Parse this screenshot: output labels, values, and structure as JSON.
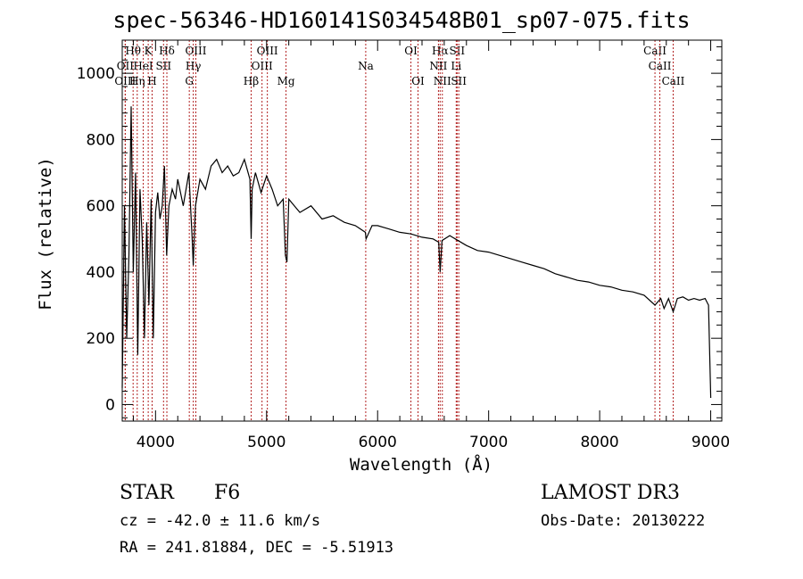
{
  "header": {
    "title": "spec-56346-HD160141S034548B01_sp07-075.fits"
  },
  "info": {
    "object_class": "STAR",
    "subclass": "F6",
    "survey": "LAMOST DR3",
    "cz": "cz = -42.0 ± 11.6 km/s",
    "obs_date": "Obs-Date: 20130222",
    "coords": "RA = 241.81884, DEC =  -5.51913"
  },
  "chart_data": {
    "type": "line",
    "title": "spec-56346-HD160141S034548B01_sp07-075.fits",
    "xlabel": "Wavelength (Å)",
    "ylabel": "Flux (relative)",
    "xlim": [
      3700,
      9100
    ],
    "ylim": [
      -50,
      1100
    ],
    "x_ticks": [
      4000,
      5000,
      6000,
      7000,
      8000,
      9000
    ],
    "y_ticks": [
      0,
      200,
      400,
      600,
      800,
      1000
    ],
    "grid": false,
    "series": [
      {
        "name": "spectrum",
        "x": [
          3700,
          3720,
          3740,
          3760,
          3780,
          3800,
          3820,
          3840,
          3860,
          3880,
          3900,
          3920,
          3940,
          3960,
          3980,
          4000,
          4020,
          4040,
          4060,
          4080,
          4100,
          4120,
          4150,
          4180,
          4200,
          4250,
          4300,
          4330,
          4340,
          4360,
          4400,
          4450,
          4500,
          4550,
          4600,
          4650,
          4700,
          4750,
          4800,
          4850,
          4861,
          4870,
          4900,
          4950,
          5000,
          5050,
          5100,
          5150,
          5170,
          5183,
          5200,
          5250,
          5300,
          5400,
          5500,
          5600,
          5700,
          5800,
          5890,
          5896,
          5950,
          6000,
          6100,
          6200,
          6300,
          6400,
          6500,
          6550,
          6563,
          6580,
          6650,
          6700,
          6800,
          6900,
          7000,
          7100,
          7200,
          7300,
          7400,
          7500,
          7600,
          7700,
          7800,
          7900,
          8000,
          8100,
          8200,
          8300,
          8400,
          8498,
          8550,
          8580,
          8620,
          8662,
          8700,
          8750,
          8800,
          8850,
          8900,
          8950,
          8980,
          9000
        ],
        "values": [
          50,
          600,
          200,
          450,
          900,
          400,
          700,
          150,
          650,
          500,
          200,
          550,
          300,
          620,
          200,
          580,
          640,
          560,
          600,
          720,
          450,
          600,
          650,
          620,
          680,
          600,
          700,
          500,
          420,
          600,
          680,
          650,
          720,
          740,
          700,
          720,
          690,
          700,
          740,
          680,
          500,
          650,
          700,
          640,
          690,
          650,
          600,
          620,
          450,
          430,
          620,
          600,
          580,
          600,
          560,
          570,
          550,
          540,
          520,
          500,
          540,
          540,
          530,
          520,
          515,
          505,
          500,
          490,
          400,
          495,
          510,
          500,
          480,
          465,
          460,
          450,
          440,
          430,
          420,
          410,
          395,
          385,
          375,
          370,
          360,
          355,
          345,
          340,
          330,
          300,
          320,
          290,
          320,
          280,
          320,
          325,
          315,
          320,
          315,
          320,
          300,
          20
        ]
      }
    ],
    "lines": [
      {
        "label": "Hθ",
        "x": 3798,
        "row": 0
      },
      {
        "label": "K",
        "x": 3934,
        "row": 0
      },
      {
        "label": "Hδ",
        "x": 4102,
        "row": 0
      },
      {
        "label": "OIII",
        "x": 4363,
        "row": 0
      },
      {
        "label": "OIII",
        "x": 5007,
        "row": 0
      },
      {
        "label": "OI",
        "x": 6300,
        "row": 0
      },
      {
        "label": "Hα",
        "x": 6563,
        "row": 0
      },
      {
        "label": "SII",
        "x": 6716,
        "row": 0
      },
      {
        "label": "CaII",
        "x": 8498,
        "row": 0
      },
      {
        "label": "OII",
        "x": 3727,
        "row": 1
      },
      {
        "label": "HeI",
        "x": 3889,
        "row": 1
      },
      {
        "label": "SII",
        "x": 4072,
        "row": 1
      },
      {
        "label": "Hγ",
        "x": 4340,
        "row": 1
      },
      {
        "label": "OIII",
        "x": 4959,
        "row": 1
      },
      {
        "label": "Na",
        "x": 5893,
        "row": 1
      },
      {
        "label": "NII",
        "x": 6548,
        "row": 1
      },
      {
        "label": "Li",
        "x": 6708,
        "row": 1
      },
      {
        "label": "CaII",
        "x": 8542,
        "row": 1
      },
      {
        "label": "OIII",
        "x": 3727,
        "row": 2
      },
      {
        "label": "Hη",
        "x": 3835,
        "row": 2
      },
      {
        "label": "H",
        "x": 3969,
        "row": 2
      },
      {
        "label": "G",
        "x": 4304,
        "row": 2
      },
      {
        "label": "Hβ",
        "x": 4861,
        "row": 2
      },
      {
        "label": "Mg",
        "x": 5175,
        "row": 2
      },
      {
        "label": "OI",
        "x": 6364,
        "row": 2
      },
      {
        "label": "NII",
        "x": 6583,
        "row": 2
      },
      {
        "label": "SII",
        "x": 6731,
        "row": 2
      },
      {
        "label": "CaII",
        "x": 8662,
        "row": 2
      }
    ],
    "line_color": "#b22222",
    "spectrum_color": "#000000"
  }
}
